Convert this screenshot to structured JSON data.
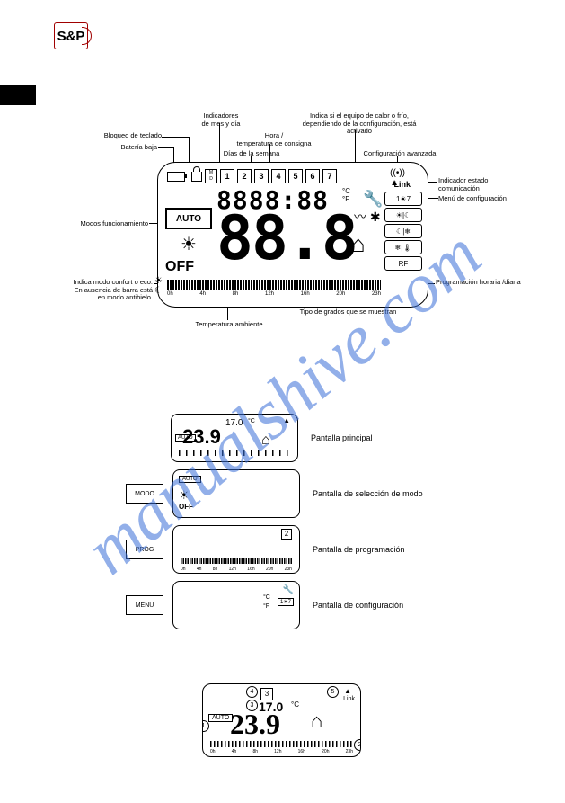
{
  "logo": "S&P",
  "watermark": "manualshive.com",
  "diag1": {
    "callouts": {
      "indicadores": "Indicadores\nde mes y día",
      "heat_cold": "Indica si el equipo de calor o frío,\ndependiendo de la configuración, está\nactivado",
      "bloqueo": "Bloqueo de teclado",
      "bateria": "Batería baja",
      "hora": "Hora /\ntemperatura de consigna",
      "dias": "Días de la semana",
      "config_av": "Configuración avanzada",
      "indicador_com": "Indicador estado\ncomunicación",
      "menu_conf": "Menú de configuración",
      "modos": "Modos funcionamiento",
      "comfort_eco": "Indica modo confort o eco.\nEn ausencia de barra está\nen modo antihielo.",
      "prog_horaria": "Programación horaria /diaria",
      "temp_amb": "Temperatura ambiente",
      "tipo_grados": "Tipo de grados que se muestran"
    },
    "lcd": {
      "md": "M\nD",
      "days": [
        "1",
        "2",
        "3",
        "4",
        "5",
        "6",
        "7"
      ],
      "small_digits": "8888:88",
      "deg": "°C\n°F",
      "link": "Link",
      "menu_items": [
        "1☀7",
        "☀|☾",
        "☾|❄",
        "❄|🌡",
        "RF"
      ],
      "auto": "AUTO",
      "off": "OFF",
      "big_digits": "88.8",
      "hours": [
        "0h",
        "4h",
        "8h",
        "12h",
        "16h",
        "20h",
        "23h"
      ],
      "house": "⌂"
    }
  },
  "fig2": {
    "buttons": [
      "MODO",
      "PROG",
      "MENU"
    ],
    "labels": {
      "principal": "Pantalla principal",
      "modo": "Pantalla de selección de modo",
      "prog": "Pantalla de programación",
      "config": "Pantalla de configuración"
    },
    "screen1": {
      "temp": "23.9",
      "set": "17.0",
      "c": "°C",
      "auto": "AUTO"
    },
    "screen2": {
      "auto": "AUTO",
      "off": "OFF"
    },
    "screen3_day": "2",
    "screen4": {
      "c": "°C",
      "f": "°F"
    },
    "hours": [
      "0h",
      "4h",
      "8h",
      "12h",
      "16h",
      "20h",
      "23h"
    ]
  },
  "fig3": {
    "temp": "23.9",
    "set": "17.0",
    "c": "°C",
    "auto": "AUTO",
    "day": "3",
    "link": "Link",
    "hours": [
      "0h",
      "4h",
      "8h",
      "12h",
      "16h",
      "20h",
      "23h"
    ],
    "circles": [
      "1",
      "2",
      "3",
      "4",
      "5"
    ]
  }
}
